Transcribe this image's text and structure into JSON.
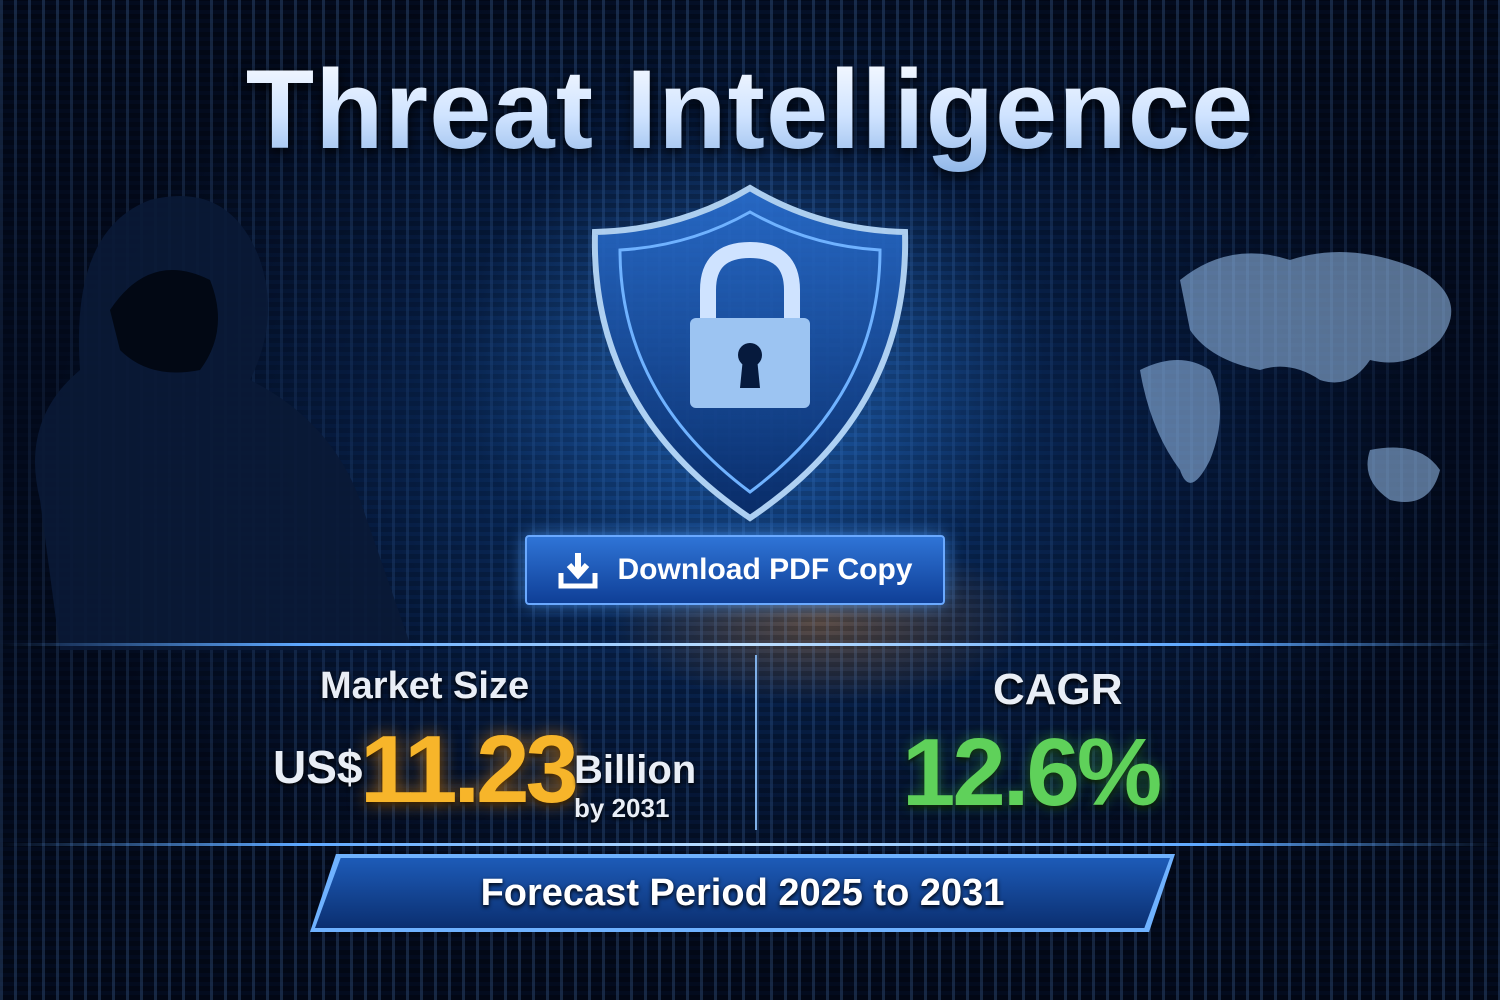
{
  "title": "Threat Intelligence",
  "download_button": {
    "label": "Download PDF Copy",
    "icon": "download-icon"
  },
  "market_size": {
    "label": "Market Size",
    "currency": "US$",
    "value": "11.23",
    "unit": "Billion",
    "year_note": "by 2031",
    "color": "#f7b52a"
  },
  "cagr": {
    "label": "CAGR",
    "value": "12.6%",
    "color": "#5fd15a"
  },
  "forecast": {
    "label": "Forecast Period 2025 to 2031"
  },
  "colors": {
    "background": "#04122e",
    "accent": "#2f74d6"
  }
}
